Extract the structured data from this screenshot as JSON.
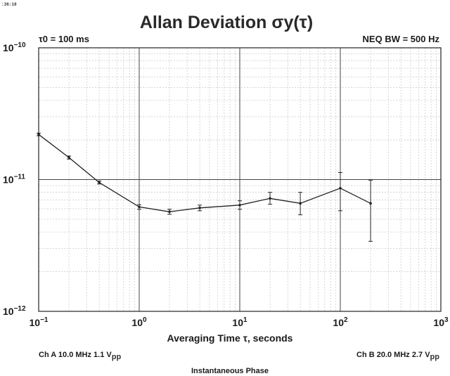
{
  "timestamp": ":36:18",
  "chart_data": {
    "type": "line",
    "title": "Allan Deviation σy(τ)",
    "tau0_label": "τ0 = 100 ms",
    "bandwidth_label": "NEQ BW = 500 Hz",
    "xlabel": "Averaging Time τ, seconds",
    "x_scale": "log",
    "y_scale": "log",
    "xlim": [
      0.1,
      1000
    ],
    "ylim": [
      1e-12,
      1e-10
    ],
    "x_ticks": [
      {
        "value": 0.1,
        "base": "10",
        "exp": "−1"
      },
      {
        "value": 1,
        "base": "10",
        "exp": "0"
      },
      {
        "value": 10,
        "base": "10",
        "exp": "1"
      },
      {
        "value": 100,
        "base": "10",
        "exp": "2"
      },
      {
        "value": 1000,
        "base": "10",
        "exp": "3"
      }
    ],
    "y_ticks": [
      {
        "value": 1e-10,
        "base": "10",
        "exp": "−10"
      },
      {
        "value": 1e-11,
        "base": "10",
        "exp": "−11"
      },
      {
        "value": 1e-12,
        "base": "10",
        "exp": "−12"
      }
    ],
    "grid": true,
    "series": [
      {
        "x": [
          0.1,
          0.2,
          0.4,
          1,
          2,
          4,
          10,
          20,
          40,
          100,
          200
        ],
        "y": [
          2.2e-11,
          1.47e-11,
          9.5e-12,
          6.2e-12,
          5.7e-12,
          6.1e-12,
          6.4e-12,
          7.2e-12,
          6.6e-12,
          8.6e-12,
          6.6e-12
        ],
        "err_low": [
          2.15e-11,
          1.43e-11,
          9.25e-12,
          5.95e-12,
          5.45e-12,
          5.8e-12,
          5.95e-12,
          6.5e-12,
          5.4e-12,
          5.8e-12,
          3.4e-12
        ],
        "err_high": [
          2.25e-11,
          1.51e-11,
          9.75e-12,
          6.45e-12,
          5.95e-12,
          6.4e-12,
          6.9e-12,
          8e-12,
          8e-12,
          1.13e-11,
          9.9e-12
        ]
      }
    ]
  },
  "footer": {
    "ch_a": {
      "main": "Ch A 10.0 MHz 1.1 V",
      "sub": "pp"
    },
    "ch_b": {
      "main": "Ch B 20.0 MHz 2.7 V",
      "sub": "pp"
    },
    "caption": "Instantaneous Phase"
  }
}
